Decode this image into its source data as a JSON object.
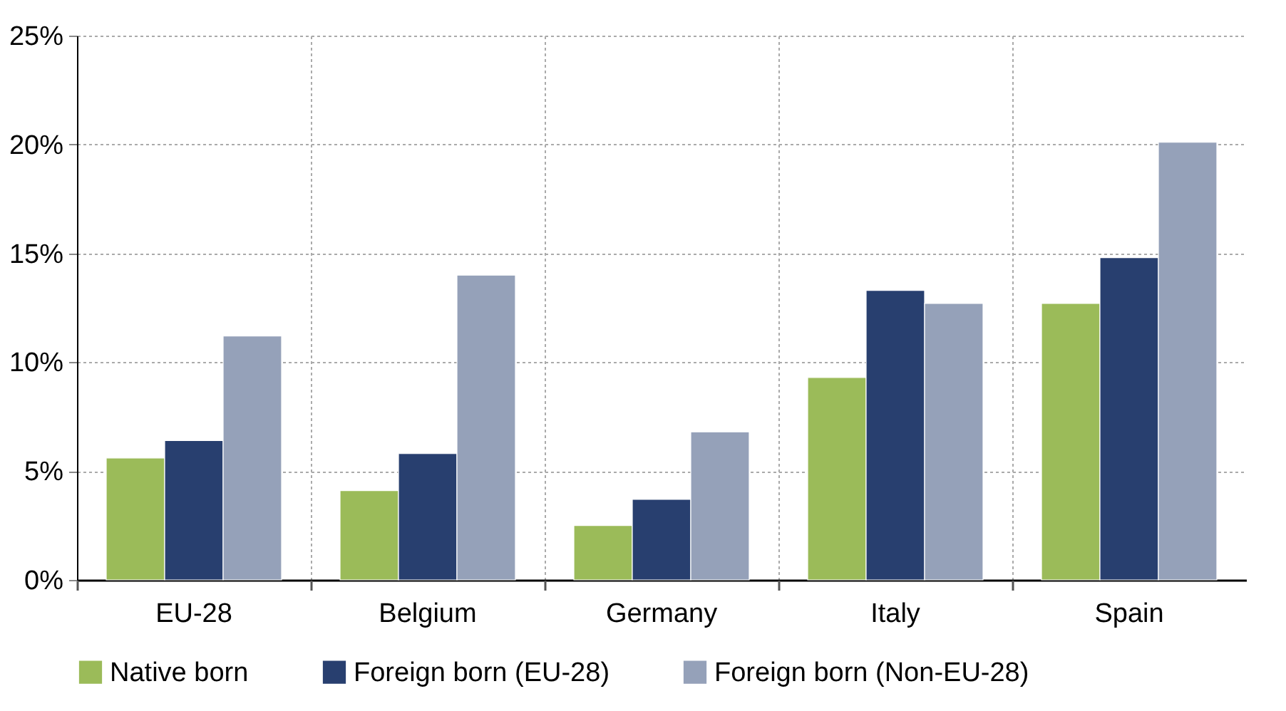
{
  "chart_data": {
    "type": "bar",
    "categories": [
      "EU-28",
      "Belgium",
      "Germany",
      "Italy",
      "Spain"
    ],
    "series": [
      {
        "name": "Native born",
        "color": "#9bbb59",
        "values": [
          5.6,
          4.1,
          2.5,
          9.3,
          12.7
        ]
      },
      {
        "name": "Foreign born (EU-28)",
        "color": "#283f6f",
        "values": [
          6.4,
          5.8,
          3.7,
          13.3,
          14.8
        ]
      },
      {
        "name": "Foreign born (Non-EU-28)",
        "color": "#95a1b9",
        "values": [
          11.2,
          14.0,
          6.8,
          12.7,
          20.1
        ]
      }
    ],
    "ylim": [
      0,
      25
    ],
    "yticks": [
      {
        "value": 0,
        "label": "0%"
      },
      {
        "value": 5,
        "label": "5%"
      },
      {
        "value": 10,
        "label": "10%"
      },
      {
        "value": 15,
        "label": "15%"
      },
      {
        "value": 20,
        "label": "20%"
      },
      {
        "value": 25,
        "label": "25%"
      }
    ],
    "grid": true,
    "legend": "bottom"
  }
}
